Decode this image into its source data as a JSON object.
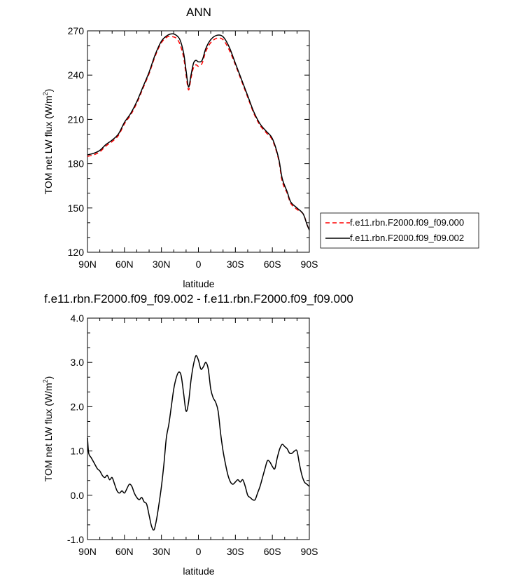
{
  "chart_data": [
    {
      "type": "line",
      "title": "ANN",
      "xlabel": "latitude",
      "ylabel_prefix": "TOM net LW flux (W/m",
      "ylabel_sup": "2",
      "ylabel_suffix": ")",
      "ylim": [
        120,
        270
      ],
      "yticks": [
        120,
        150,
        180,
        210,
        240,
        270
      ],
      "ytick_labels": [
        "120",
        "150",
        "180",
        "210",
        "240",
        "270"
      ],
      "xlim": [
        90,
        -90
      ],
      "xticks": [
        90,
        60,
        30,
        0,
        -30,
        -60,
        -90
      ],
      "xtick_labels": [
        "90N",
        "60N",
        "30N",
        "0",
        "30S",
        "60S",
        "90S"
      ],
      "legend_position": "right",
      "series": [
        {
          "name": "f.e11.rbn.F2000.f09_f09.000",
          "color": "#ff0000",
          "dash": "dashed",
          "x": [
            90,
            85,
            80,
            75,
            70,
            65,
            60,
            55,
            50,
            45,
            40,
            35,
            30,
            25,
            21,
            18,
            15,
            12,
            10,
            8,
            6,
            4,
            2,
            0,
            -3,
            -6,
            -10,
            -15,
            -20,
            -25,
            -30,
            -35,
            -40,
            -45,
            -50,
            -55,
            -60,
            -65,
            -68,
            -72,
            -75,
            -80,
            -85,
            -88,
            -90
          ],
          "y": [
            185,
            186,
            188,
            192,
            195,
            199,
            207,
            213,
            221,
            231,
            241,
            253,
            262,
            266,
            266,
            265,
            261,
            252,
            240,
            230,
            238,
            245,
            247,
            246,
            248,
            256,
            262,
            265,
            264,
            257,
            247,
            236,
            225,
            214,
            206,
            201,
            196,
            183,
            168,
            160,
            153,
            149,
            146,
            139,
            135
          ]
        },
        {
          "name": "f.e11.rbn.F2000.f09_f09.002",
          "color": "#000000",
          "dash": "solid",
          "x": [
            90,
            85,
            80,
            75,
            70,
            65,
            60,
            55,
            50,
            45,
            40,
            35,
            30,
            25,
            21,
            18,
            15,
            12,
            10,
            8,
            6,
            4,
            2,
            0,
            -3,
            -6,
            -10,
            -15,
            -20,
            -25,
            -30,
            -35,
            -40,
            -45,
            -50,
            -55,
            -60,
            -65,
            -68,
            -72,
            -75,
            -80,
            -85,
            -88,
            -90
          ],
          "y": [
            186,
            187,
            189,
            193,
            196,
            200,
            208,
            214,
            222,
            232,
            242,
            254,
            263,
            267,
            268,
            267,
            264,
            255,
            243,
            232,
            240,
            248,
            250,
            249,
            250,
            258,
            264,
            267,
            266,
            259,
            248,
            237,
            226,
            215,
            207,
            202,
            197,
            184,
            170,
            161,
            154,
            150,
            146,
            139,
            135
          ]
        }
      ]
    },
    {
      "type": "line",
      "title": "f.e11.rbn.F2000.f09_f09.002 - f.e11.rbn.F2000.f09_f09.000",
      "xlabel": "latitude",
      "ylabel_prefix": "TOM net LW flux (W/m",
      "ylabel_sup": "2",
      "ylabel_suffix": ")",
      "ylim": [
        -1.0,
        4.0
      ],
      "yticks": [
        -1.0,
        0.0,
        1.0,
        2.0,
        3.0,
        4.0
      ],
      "ytick_labels": [
        "-1.0",
        "0.0",
        "1.0",
        "2.0",
        "3.0",
        "4.0"
      ],
      "xlim": [
        90,
        -90
      ],
      "xticks": [
        90,
        60,
        30,
        0,
        -30,
        -60,
        -90
      ],
      "xtick_labels": [
        "90N",
        "60N",
        "30N",
        "0",
        "30S",
        "60S",
        "90S"
      ],
      "series": [
        {
          "color": "#000000",
          "dash": "solid",
          "x": [
            90,
            89,
            87,
            85,
            82,
            80,
            78,
            76,
            74,
            72,
            70,
            68,
            66,
            64,
            62,
            60,
            58,
            56,
            54,
            52,
            50,
            48,
            46,
            44,
            42,
            40,
            38,
            36,
            34,
            32,
            30,
            28,
            26,
            24,
            22,
            20,
            18,
            16,
            14,
            12,
            10,
            8,
            6,
            4,
            2,
            0,
            -2,
            -4,
            -6,
            -8,
            -10,
            -12,
            -14,
            -16,
            -18,
            -20,
            -22,
            -24,
            -26,
            -28,
            -30,
            -32,
            -34,
            -36,
            -38,
            -40,
            -42,
            -44,
            -46,
            -48,
            -50,
            -52,
            -54,
            -56,
            -58,
            -60,
            -62,
            -64,
            -66,
            -68,
            -70,
            -72,
            -74,
            -76,
            -78,
            -80,
            -82,
            -84,
            -86,
            -88,
            -90
          ],
          "y": [
            1.3,
            0.95,
            0.85,
            0.75,
            0.6,
            0.55,
            0.45,
            0.4,
            0.45,
            0.35,
            0.4,
            0.25,
            0.1,
            0.05,
            0.1,
            0.05,
            0.15,
            0.25,
            0.2,
            0.05,
            -0.05,
            -0.1,
            -0.05,
            -0.15,
            -0.2,
            -0.45,
            -0.7,
            -0.78,
            -0.55,
            -0.2,
            0.2,
            0.7,
            1.3,
            1.6,
            2.0,
            2.4,
            2.65,
            2.78,
            2.7,
            2.3,
            1.9,
            2.1,
            2.6,
            2.95,
            3.15,
            3.05,
            2.85,
            2.9,
            3.0,
            2.85,
            2.4,
            2.2,
            2.1,
            1.9,
            1.4,
            1.0,
            0.7,
            0.45,
            0.3,
            0.25,
            0.3,
            0.35,
            0.3,
            0.35,
            0.2,
            0.0,
            -0.05,
            -0.1,
            -0.1,
            0.05,
            0.2,
            0.4,
            0.6,
            0.78,
            0.75,
            0.65,
            0.6,
            0.85,
            1.05,
            1.15,
            1.1,
            1.05,
            0.95,
            0.95,
            1.0,
            1.0,
            0.7,
            0.45,
            0.3,
            0.25,
            0.2
          ]
        }
      ]
    }
  ]
}
